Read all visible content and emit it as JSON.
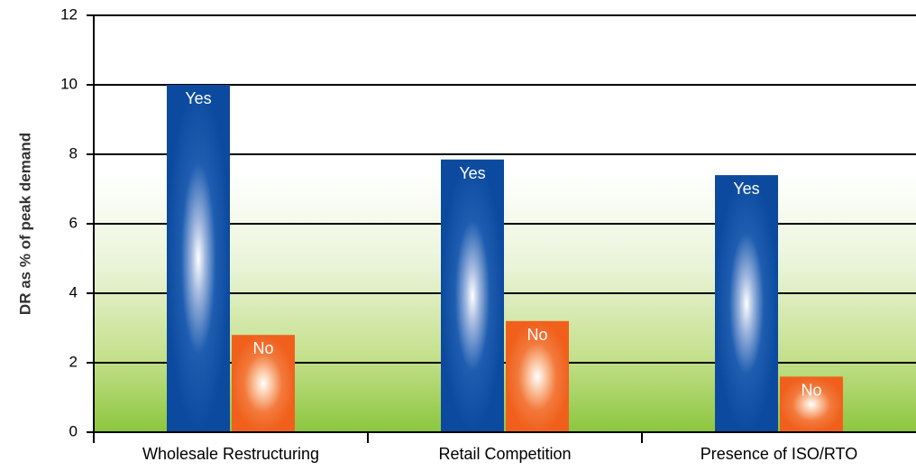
{
  "chart_data": {
    "type": "bar",
    "title": "",
    "xlabel": "",
    "ylabel": "DR as % of peak demand",
    "ylim": [
      0,
      12
    ],
    "yticks": [
      0,
      2,
      4,
      6,
      8,
      10,
      12
    ],
    "grid": true,
    "categories": [
      "Wholesale Restructuring",
      "Retail Competition",
      "Presence of ISO/RTO"
    ],
    "series": [
      {
        "values": [
          10.0,
          7.85,
          7.4
        ],
        "bar_labels": [
          "Yes",
          "Yes",
          "Yes"
        ],
        "color": "#0b4a9e"
      },
      {
        "values": [
          2.8,
          3.2,
          1.6
        ],
        "bar_labels": [
          "No",
          "No",
          "No"
        ],
        "color": "#f0601c"
      }
    ],
    "background_gradient": [
      "#ffffff",
      "#8cc63e"
    ]
  }
}
